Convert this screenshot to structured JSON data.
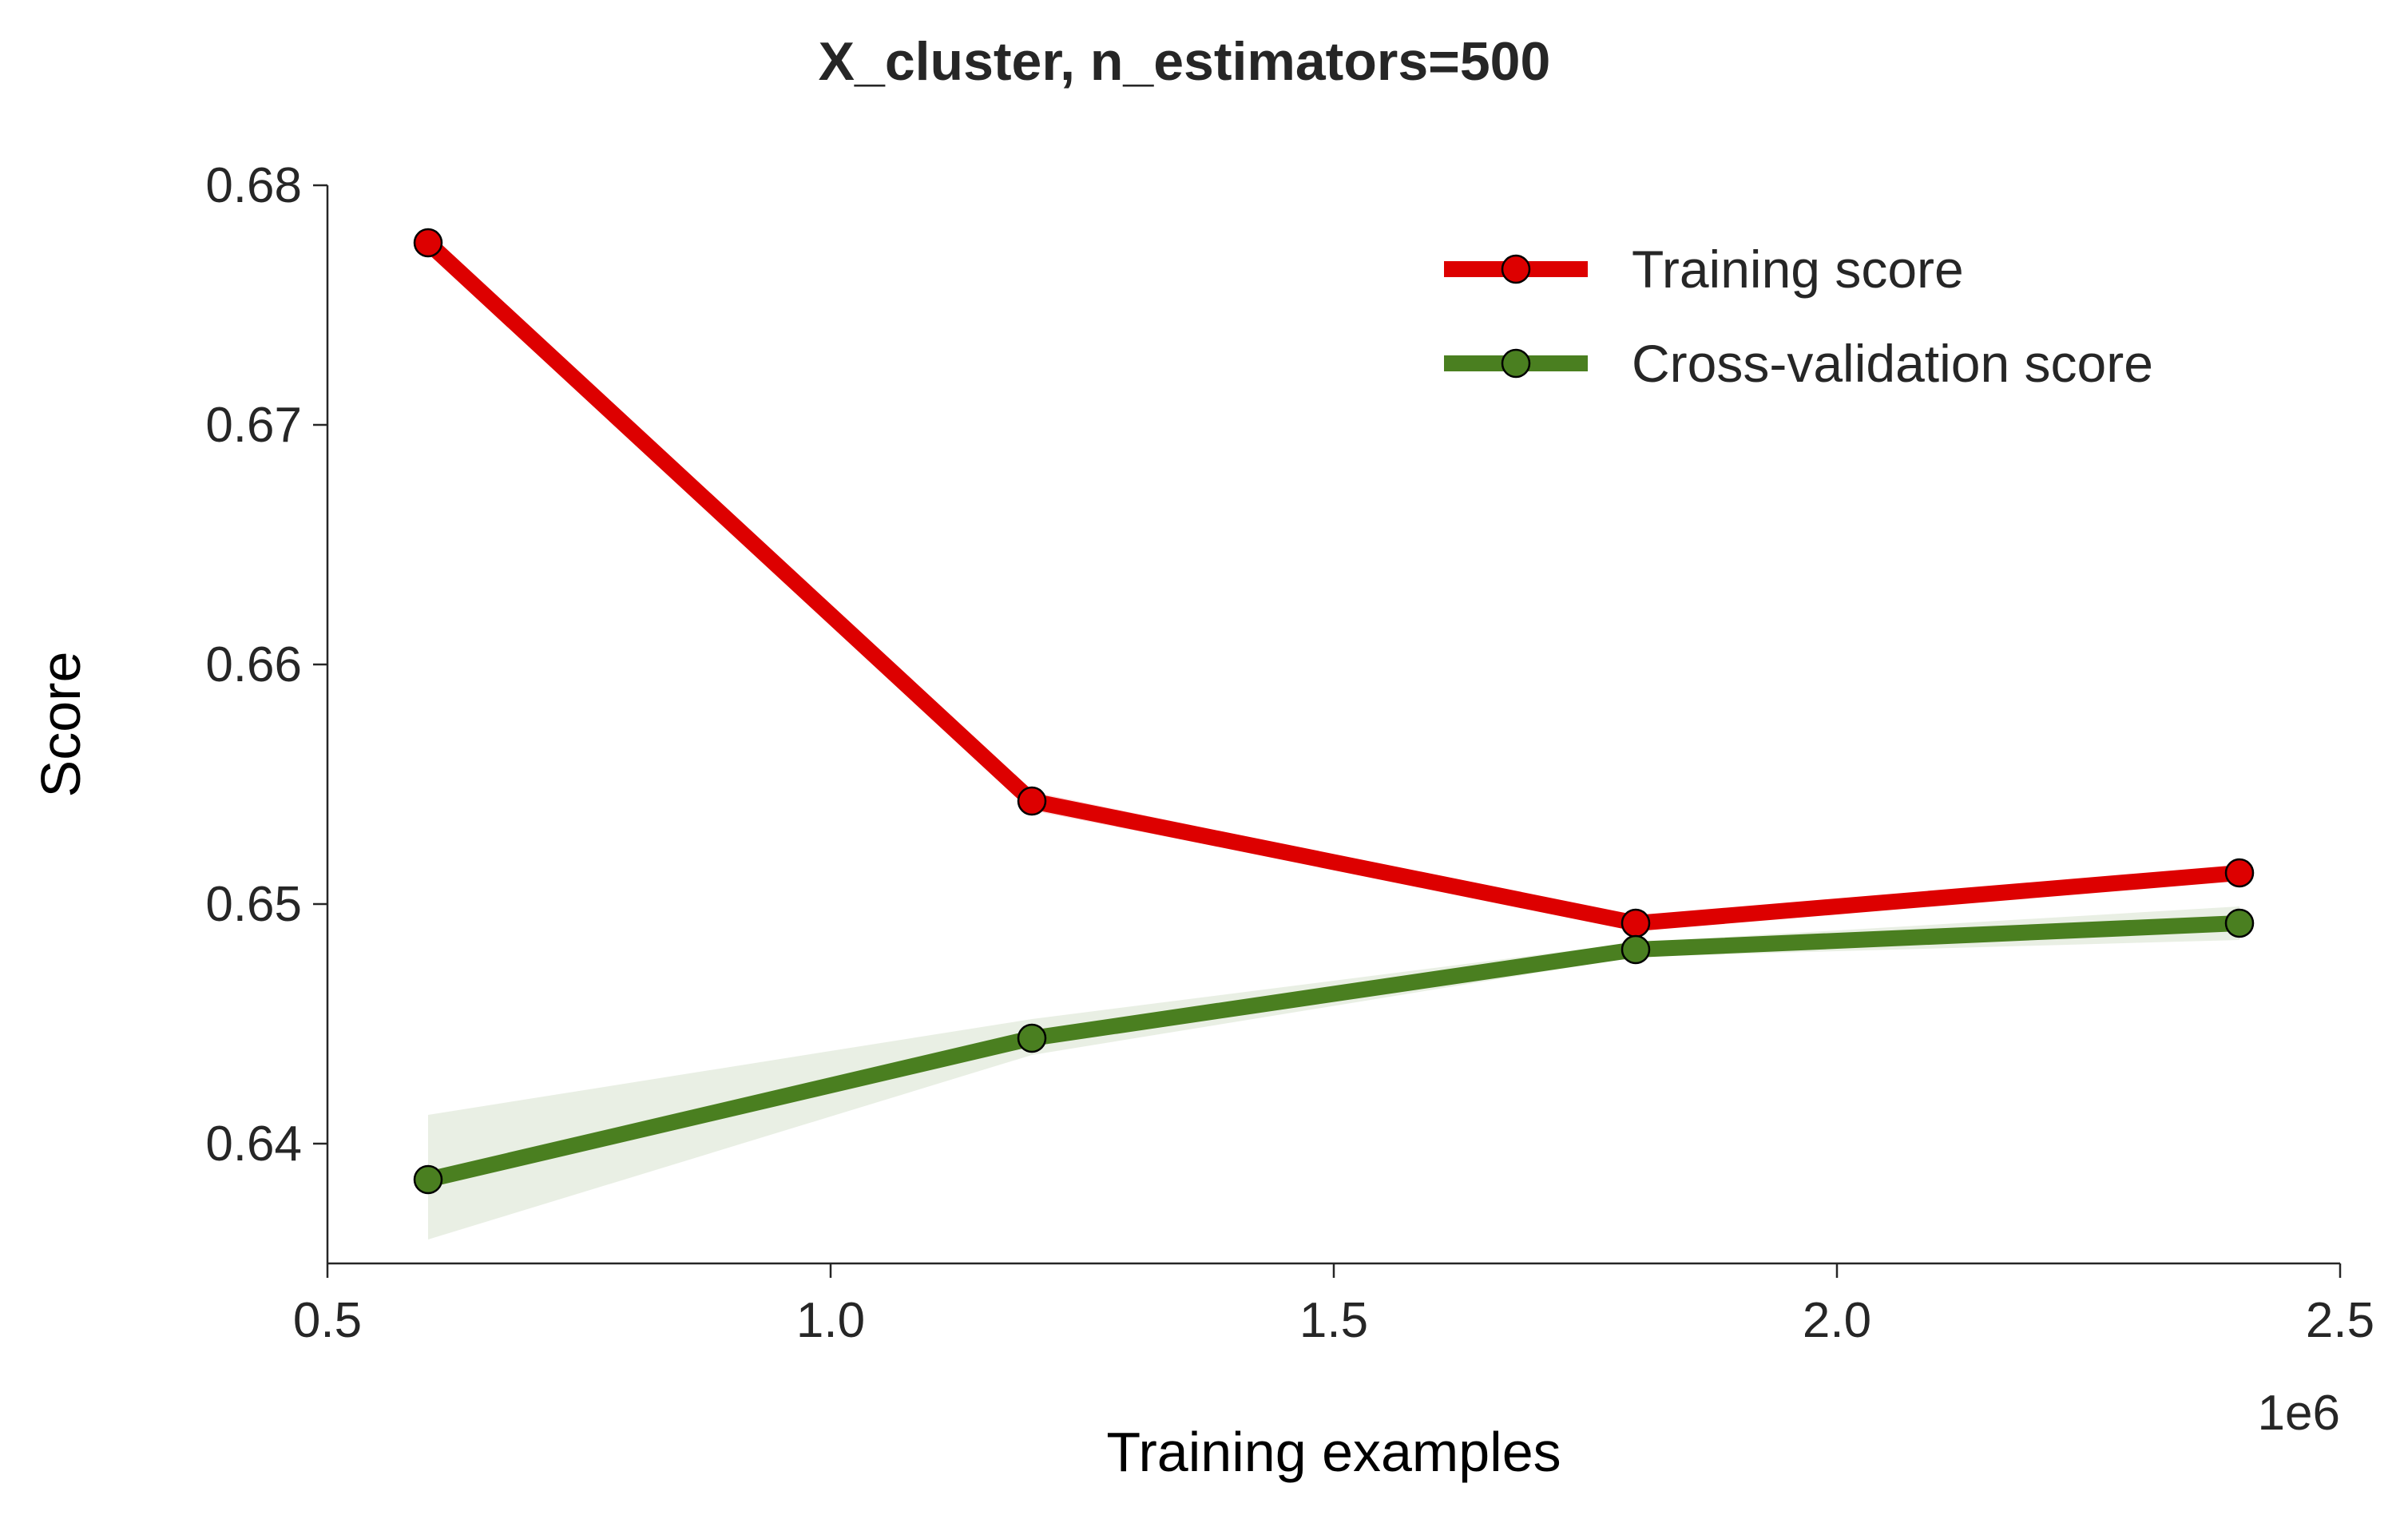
{
  "chart_data": {
    "type": "line",
    "title": "X_cluster, n_estimators=500",
    "xlabel": "Training examples",
    "ylabel": "Score",
    "x_offset_label": "1e6",
    "xlim": [
      0.5,
      2.5
    ],
    "ylim": [
      0.635,
      0.68
    ],
    "x_ticks": [
      "0.5",
      "1.0",
      "1.5",
      "2.0",
      "2.5"
    ],
    "y_ticks": [
      "0.64",
      "0.65",
      "0.66",
      "0.67",
      "0.68"
    ],
    "x": [
      0.6,
      1.2,
      1.8,
      2.4
    ],
    "series": [
      {
        "name": "Training score",
        "color": "#dd0000",
        "values": [
          0.6776,
          0.6543,
          0.6492,
          0.6513
        ],
        "band_lower": [
          0.6776,
          0.6539,
          0.649,
          0.6511
        ],
        "band_upper": [
          0.6776,
          0.6547,
          0.6494,
          0.6515
        ]
      },
      {
        "name": "Cross-validation score",
        "color": "#4a7f20",
        "values": [
          0.6385,
          0.6444,
          0.6481,
          0.6492
        ],
        "band_lower": [
          0.636,
          0.6437,
          0.6478,
          0.6485
        ],
        "band_upper": [
          0.6412,
          0.6452,
          0.6484,
          0.6499
        ]
      }
    ],
    "legend_position": "top-right",
    "grid": false
  }
}
